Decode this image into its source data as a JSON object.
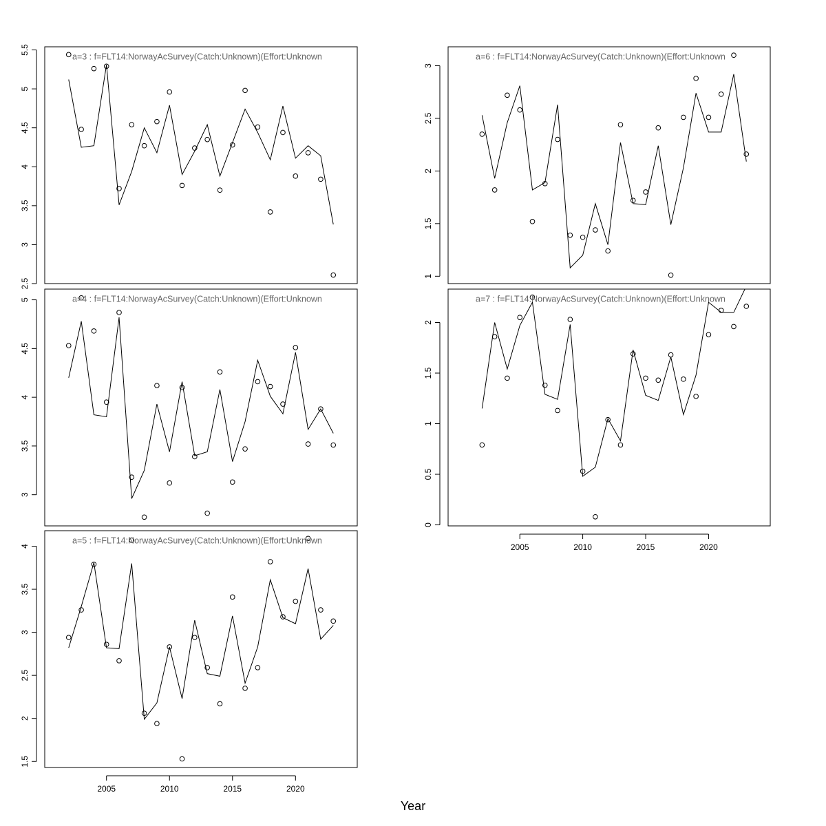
{
  "xlabel": "Year",
  "chart_data": [
    {
      "type": "line",
      "title": "a=3  :  f=FLT14:NorwayAcSurvey(Catch:Unknown)(Effort:Unknown",
      "x": [
        2002,
        2003,
        2004,
        2005,
        2006,
        2007,
        2008,
        2009,
        2010,
        2011,
        2012,
        2013,
        2014,
        2015,
        2016,
        2017,
        2018,
        2019,
        2020,
        2021,
        2022,
        2023
      ],
      "series": [
        {
          "style": "line",
          "color": "#000000",
          "values": [
            5.12,
            4.25,
            4.27,
            5.31,
            3.51,
            3.94,
            4.5,
            4.18,
            4.79,
            3.9,
            4.2,
            4.54,
            3.88,
            4.31,
            4.74,
            4.44,
            4.09,
            4.78,
            4.11,
            4.27,
            4.14,
            3.26
          ]
        },
        {
          "style": "points",
          "color": "#000000",
          "values": [
            5.44,
            4.48,
            5.26,
            5.29,
            3.72,
            4.54,
            4.27,
            4.58,
            4.96,
            3.76,
            4.24,
            4.35,
            3.7,
            4.28,
            4.98,
            4.51,
            3.42,
            4.44,
            3.88,
            4.18,
            3.84,
            2.61
          ]
        }
      ],
      "xlim": [
        2000.1,
        2024.9
      ],
      "ylim": [
        2.5,
        5.54
      ],
      "yticks": [
        2.5,
        3.0,
        3.5,
        4.0,
        4.5,
        5.0,
        5.5
      ]
    },
    {
      "type": "line",
      "title": "a=4  :  f=FLT14:NorwayAcSurvey(Catch:Unknown)(Effort:Unknown",
      "x": [
        2002,
        2003,
        2004,
        2005,
        2006,
        2007,
        2008,
        2009,
        2010,
        2011,
        2012,
        2013,
        2014,
        2015,
        2016,
        2017,
        2018,
        2019,
        2020,
        2021,
        2022,
        2023
      ],
      "series": [
        {
          "style": "line",
          "color": "#000000",
          "values": [
            4.2,
            4.78,
            3.82,
            3.8,
            4.82,
            2.96,
            3.25,
            3.93,
            3.44,
            4.16,
            3.4,
            3.44,
            4.08,
            3.34,
            3.75,
            4.38,
            4.01,
            3.83,
            4.46,
            3.67,
            3.88,
            3.63
          ]
        },
        {
          "style": "points",
          "color": "#000000",
          "values": [
            4.53,
            5.02,
            4.68,
            3.95,
            4.87,
            3.18,
            2.77,
            4.12,
            3.12,
            4.1,
            3.39,
            2.81,
            4.26,
            3.13,
            3.47,
            4.16,
            4.11,
            3.93,
            4.51,
            3.52,
            3.88,
            3.51
          ]
        }
      ],
      "xlim": [
        2000.1,
        2024.9
      ],
      "ylim": [
        2.68,
        5.11
      ],
      "yticks": [
        3.0,
        3.5,
        4.0,
        4.5,
        5.0
      ]
    },
    {
      "type": "line",
      "title": "a=5  :  f=FLT14:NorwayAcSurvey(Catch:Unknown)(Effort:Unknown",
      "x": [
        2002,
        2003,
        2004,
        2005,
        2006,
        2007,
        2008,
        2009,
        2010,
        2011,
        2012,
        2013,
        2014,
        2015,
        2016,
        2017,
        2018,
        2019,
        2020,
        2021,
        2022,
        2023
      ],
      "series": [
        {
          "style": "line",
          "color": "#000000",
          "values": [
            2.82,
            3.3,
            3.81,
            2.82,
            2.81,
            3.8,
            1.99,
            2.18,
            2.83,
            2.23,
            3.14,
            2.52,
            2.49,
            3.19,
            2.41,
            2.83,
            3.61,
            3.17,
            3.1,
            3.74,
            2.92,
            3.08
          ]
        },
        {
          "style": "points",
          "color": "#000000",
          "values": [
            2.94,
            3.26,
            3.79,
            2.86,
            2.67,
            4.07,
            2.06,
            1.94,
            2.83,
            1.53,
            2.94,
            2.59,
            2.17,
            3.41,
            2.35,
            2.59,
            3.82,
            3.18,
            3.36,
            4.09,
            3.26,
            3.13
          ]
        }
      ],
      "xlim": [
        2000.1,
        2024.9
      ],
      "ylim": [
        1.43,
        4.18
      ],
      "yticks": [
        1.5,
        2.0,
        2.5,
        3.0,
        3.5,
        4.0
      ],
      "xticks": [
        2005,
        2010,
        2015,
        2020
      ]
    },
    {
      "type": "line",
      "title": "a=6  :  f=FLT14:NorwayAcSurvey(Catch:Unknown)(Effort:Unknown",
      "x": [
        2002,
        2003,
        2004,
        2005,
        2006,
        2007,
        2008,
        2009,
        2010,
        2011,
        2012,
        2013,
        2014,
        2015,
        2016,
        2017,
        2018,
        2019,
        2020,
        2021,
        2022,
        2023
      ],
      "series": [
        {
          "style": "line",
          "color": "#000000",
          "values": [
            2.53,
            1.93,
            2.46,
            2.81,
            1.82,
            1.89,
            2.63,
            1.08,
            1.2,
            1.69,
            1.3,
            2.27,
            1.69,
            1.68,
            2.24,
            1.49,
            2.03,
            2.74,
            2.37,
            2.37,
            2.92,
            2.09
          ]
        },
        {
          "style": "points",
          "color": "#000000",
          "values": [
            2.35,
            1.82,
            2.72,
            2.58,
            1.52,
            1.88,
            2.3,
            1.39,
            1.37,
            1.44,
            1.24,
            2.44,
            1.72,
            1.8,
            2.41,
            1.01,
            2.51,
            2.88,
            2.51,
            2.73,
            3.1,
            2.16
          ]
        }
      ],
      "xlim": [
        1999.3,
        2024.9
      ],
      "ylim": [
        0.93,
        3.18
      ],
      "yticks": [
        1.0,
        1.5,
        2.0,
        2.5,
        3.0
      ]
    },
    {
      "type": "line",
      "title": "a=7  :  f=FLT14:NorwayAcSurvey(Catch:Unknown)(Effort:Unknown",
      "x": [
        2002,
        2003,
        2004,
        2005,
        2006,
        2007,
        2008,
        2009,
        2010,
        2011,
        2012,
        2013,
        2014,
        2015,
        2016,
        2017,
        2018,
        2019,
        2020,
        2021,
        2022,
        2023
      ],
      "series": [
        {
          "style": "line",
          "color": "#000000",
          "values": [
            1.15,
            2.0,
            1.54,
            1.97,
            2.2,
            1.29,
            1.24,
            1.98,
            0.48,
            0.57,
            1.05,
            0.83,
            1.73,
            1.28,
            1.23,
            1.66,
            1.09,
            1.48,
            2.2,
            2.1,
            2.1,
            2.36
          ]
        },
        {
          "style": "points",
          "color": "#000000",
          "values": [
            0.79,
            1.86,
            1.45,
            2.05,
            2.25,
            1.38,
            1.13,
            2.03,
            0.53,
            0.08,
            1.04,
            0.79,
            1.69,
            1.45,
            1.43,
            1.68,
            1.44,
            1.27,
            1.88,
            2.12,
            1.96,
            2.16
          ]
        }
      ],
      "xlim": [
        1999.3,
        2024.9
      ],
      "ylim": [
        -0.01,
        2.33
      ],
      "yticks": [
        0.0,
        0.5,
        1.0,
        1.5,
        2.0
      ],
      "xticks": [
        2005,
        2010,
        2015,
        2020
      ]
    }
  ]
}
